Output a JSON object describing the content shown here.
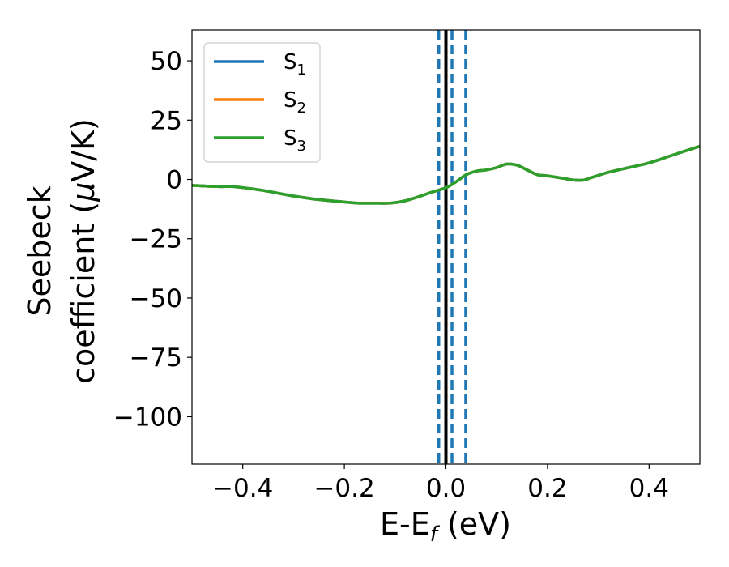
{
  "chart_data": {
    "type": "line",
    "xlabel": {
      "main": "E-E",
      "sub": "f",
      "tail": " (eV)"
    },
    "ylabel": {
      "line1": "Seebeck",
      "line2_prefix": "coefficient  (",
      "line2_mu": "μ",
      "line2_suffix": "V/K)"
    },
    "xlim": [
      -0.5,
      0.5
    ],
    "ylim": [
      -120,
      63
    ],
    "x_ticks": [
      -0.4,
      -0.2,
      0.0,
      0.2,
      0.4
    ],
    "x_tick_labels": [
      "−0.4",
      "−0.2",
      "0.0",
      "0.2",
      "0.4"
    ],
    "y_ticks": [
      50,
      25,
      0,
      -25,
      -50,
      -75,
      -100
    ],
    "y_tick_labels": [
      "50",
      "25",
      "0",
      "−25",
      "−50",
      "−75",
      "−100"
    ],
    "legend_position": "upper-left",
    "series": [
      {
        "name": "S",
        "sub": "1",
        "color": "#1f77b4",
        "x": [
          -0.5,
          -0.45,
          -0.42,
          -0.38,
          -0.35,
          -0.3,
          -0.25,
          -0.2,
          -0.17,
          -0.14,
          -0.11,
          -0.08,
          -0.05,
          -0.03,
          0.0,
          0.02,
          0.04,
          0.06,
          0.08,
          0.1,
          0.12,
          0.14,
          0.16,
          0.18,
          0.2,
          0.23,
          0.25,
          0.27,
          0.29,
          0.32,
          0.35,
          0.4,
          0.45,
          0.5
        ],
        "y": [
          -2.5,
          -3,
          -3,
          -4,
          -5,
          -7,
          -8.5,
          -9.5,
          -10,
          -10,
          -10,
          -9,
          -7,
          -5.5,
          -3.5,
          -1,
          2,
          3.5,
          4,
          5,
          6.5,
          6,
          4,
          2,
          1.5,
          0.5,
          -0.2,
          -0.3,
          1,
          3,
          4.5,
          7,
          10.5,
          14
        ]
      },
      {
        "name": "S",
        "sub": "2",
        "color": "#ff7f0e",
        "x": [
          -0.5,
          -0.45,
          -0.42,
          -0.38,
          -0.35,
          -0.3,
          -0.25,
          -0.2,
          -0.17,
          -0.14,
          -0.11,
          -0.08,
          -0.05,
          -0.03,
          0.0,
          0.02,
          0.04,
          0.06,
          0.08,
          0.1,
          0.12,
          0.14,
          0.16,
          0.18,
          0.2,
          0.23,
          0.25,
          0.27,
          0.29,
          0.32,
          0.35,
          0.4,
          0.45,
          0.5
        ],
        "y": [
          -2.5,
          -3,
          -3,
          -4,
          -5,
          -7,
          -8.5,
          -9.5,
          -10,
          -10,
          -10,
          -9,
          -7,
          -5.5,
          -3.5,
          -1,
          2,
          3.5,
          4,
          5,
          6.5,
          6,
          4,
          2,
          1.5,
          0.5,
          -0.2,
          -0.3,
          1,
          3,
          4.5,
          7,
          10.5,
          14
        ]
      },
      {
        "name": "S",
        "sub": "3",
        "color": "#2ca02c",
        "x": [
          -0.5,
          -0.45,
          -0.42,
          -0.38,
          -0.35,
          -0.3,
          -0.25,
          -0.2,
          -0.17,
          -0.14,
          -0.11,
          -0.08,
          -0.05,
          -0.03,
          0.0,
          0.02,
          0.04,
          0.06,
          0.08,
          0.1,
          0.12,
          0.14,
          0.16,
          0.18,
          0.2,
          0.23,
          0.25,
          0.27,
          0.29,
          0.32,
          0.35,
          0.4,
          0.45,
          0.5
        ],
        "y": [
          -2.5,
          -3,
          -3,
          -4,
          -5,
          -7,
          -8.5,
          -9.5,
          -10,
          -10,
          -10,
          -9,
          -7,
          -5.5,
          -3.5,
          -1,
          2,
          3.5,
          4,
          5,
          6.5,
          6,
          4,
          2,
          1.5,
          0.5,
          -0.2,
          -0.3,
          1,
          3,
          4.5,
          7,
          10.5,
          14
        ]
      }
    ],
    "vertical_lines": [
      {
        "x": 0.0,
        "color": "#000000",
        "style": "solid"
      },
      {
        "x": -0.014,
        "color": "#1f77b4",
        "style": "dashed"
      },
      {
        "x": 0.012,
        "color": "#1f77b4",
        "style": "dashed"
      },
      {
        "x": 0.039,
        "color": "#1f77b4",
        "style": "dashed"
      }
    ]
  }
}
